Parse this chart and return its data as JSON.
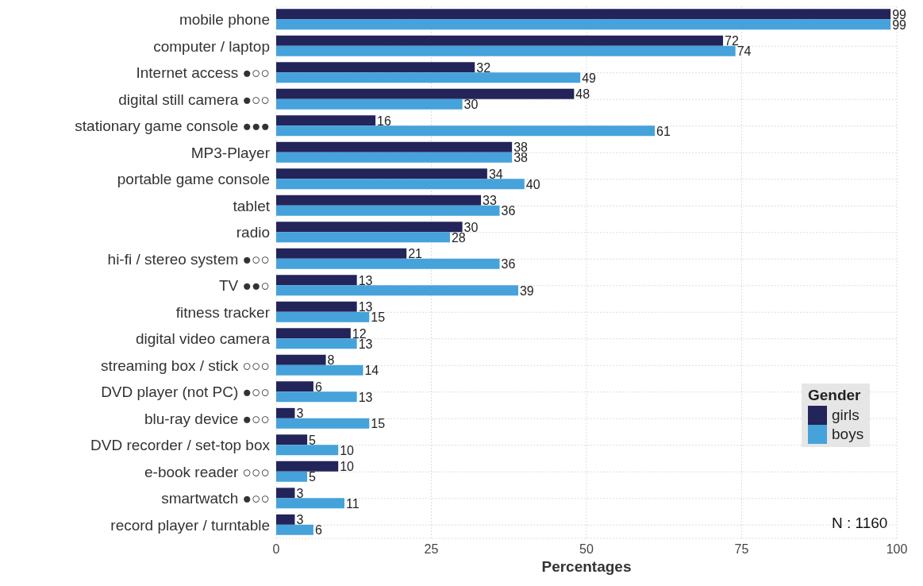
{
  "chart_data": {
    "type": "bar",
    "orientation": "horizontal",
    "xlabel": "Percentages",
    "legend_title": "Gender",
    "legend": "bottom right",
    "grid": true,
    "data_labels": true,
    "categories": [
      "mobile phone",
      "computer / laptop",
      "Internet access ●○○",
      "digital still camera ●○○",
      "stationary game console ●●●",
      "MP3-Player",
      "portable game console",
      "tablet",
      "radio",
      "hi-fi / stereo system ●○○",
      "TV ●●○",
      "fitness tracker",
      "digital video camera",
      "streaming box / stick ○○○",
      "DVD player (not PC) ●○○",
      "blu-ray device ●○○",
      "DVD recorder / set-top box",
      "e-book reader ○○○",
      "smartwatch ●○○",
      "record player / turntable"
    ],
    "series": [
      {
        "name": "girls",
        "color": "#23245a",
        "values": [
          99,
          72,
          32,
          48,
          16,
          38,
          34,
          33,
          30,
          21,
          13,
          13,
          12,
          8,
          6,
          3,
          5,
          10,
          3,
          3
        ]
      },
      {
        "name": "boys",
        "color": "#46a2da",
        "values": [
          99,
          74,
          49,
          30,
          61,
          38,
          40,
          36,
          28,
          36,
          39,
          15,
          13,
          14,
          13,
          15,
          10,
          5,
          11,
          6
        ]
      }
    ],
    "xlim": [
      0,
      100
    ],
    "xticks": [
      0,
      25,
      50,
      75,
      100
    ],
    "annotations": [
      "N : 1160"
    ]
  }
}
